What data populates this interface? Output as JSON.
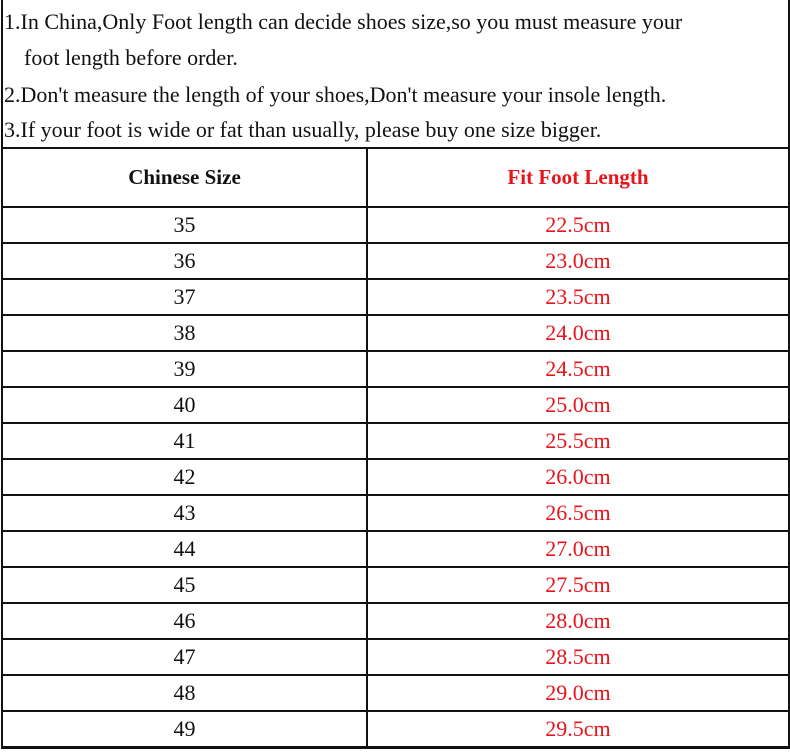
{
  "notes": [
    "1.In China,Only Foot length can decide shoes size,so you must measure your",
    "foot length before order.",
    "2.Don't measure the length of your shoes,Don't measure your insole length.",
    "3.If your foot is wide or fat than usually, please buy one size bigger."
  ],
  "table": {
    "headers": [
      "Chinese Size",
      "Fit Foot Length"
    ],
    "rows": [
      [
        "35",
        "22.5cm"
      ],
      [
        "36",
        "23.0cm"
      ],
      [
        "37",
        "23.5cm"
      ],
      [
        "38",
        "24.0cm"
      ],
      [
        "39",
        "24.5cm"
      ],
      [
        "40",
        "25.0cm"
      ],
      [
        "41",
        "25.5cm"
      ],
      [
        "42",
        "26.0cm"
      ],
      [
        "43",
        "26.5cm"
      ],
      [
        "44",
        "27.0cm"
      ],
      [
        "45",
        "27.5cm"
      ],
      [
        "46",
        "28.0cm"
      ],
      [
        "47",
        "28.5cm"
      ],
      [
        "48",
        "29.0cm"
      ],
      [
        "49",
        "29.5cm"
      ]
    ]
  },
  "colors": {
    "accent_red": "#e8141b",
    "text": "#111111"
  }
}
